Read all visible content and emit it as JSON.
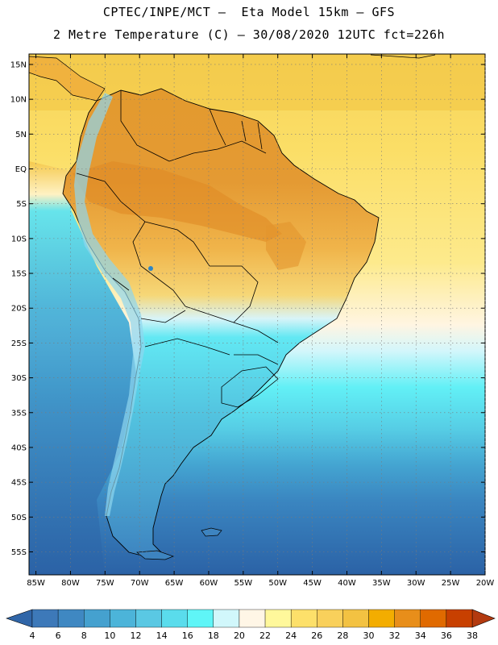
{
  "header": {
    "line1": "CPTEC/INPE/MCT –  Eta Model 15km – GFS",
    "line2": "2 Metre Temperature (C) – 30/08/2020 12UTC fct=226h"
  },
  "axes": {
    "lat_labels": [
      "15N",
      "10N",
      "5N",
      "EQ",
      "5S",
      "10S",
      "15S",
      "20S",
      "25S",
      "30S",
      "35S",
      "40S",
      "45S",
      "50S",
      "55S"
    ],
    "lon_labels": [
      "85W",
      "80W",
      "75W",
      "70W",
      "65W",
      "60W",
      "55W",
      "50W",
      "45W",
      "40W",
      "35W",
      "30W",
      "25W",
      "20W"
    ]
  },
  "colorbar": {
    "labels": [
      "4",
      "6",
      "8",
      "10",
      "12",
      "14",
      "16",
      "18",
      "20",
      "22",
      "24",
      "26",
      "28",
      "30",
      "32",
      "34",
      "36",
      "38"
    ],
    "colors": [
      "#3d79b9",
      "#3f88c2",
      "#45a1cf",
      "#4cb4d9",
      "#5ac8e3",
      "#5adcec",
      "#5ff5f7",
      "#d1f7fb",
      "#fff6e6",
      "#fff89b",
      "#fde06a",
      "#f9d05b",
      "#f3c242",
      "#f3ad00",
      "#e88e1a",
      "#e06a00",
      "#c84000"
    ],
    "under_color": "#3066a8",
    "over_color": "#b33a0f"
  },
  "colors": {
    "ocean_north": "#fadc67",
    "ocean_south": "#2d68ac",
    "land_hot": "#e7a136",
    "land_cold": "#5bd4e8",
    "border": "#000000"
  }
}
